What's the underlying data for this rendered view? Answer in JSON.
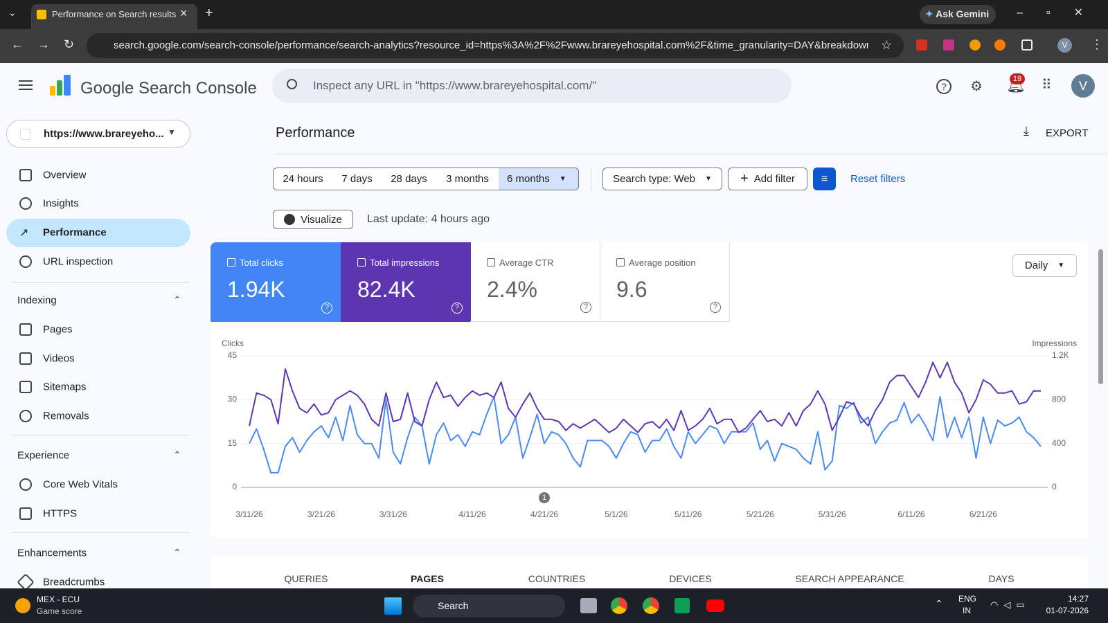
{
  "browser": {
    "tab_title": "Performance on Search results",
    "url": "search.google.com/search-console/performance/search-analytics?resource_id=https%3A%2F%2Fwww.brareyehospital.com%2F&time_granularity=DAY&breakdown=pa...",
    "gemini": "Ask Gemini",
    "profile": "V"
  },
  "header": {
    "product": "Google Search Console",
    "search_placeholder": "Inspect any URL in \"https://www.brareyehospital.com/\"",
    "notifications": "19",
    "avatar": "V"
  },
  "sidebar": {
    "property": "https://www.brareyeho...",
    "nav": [
      "Overview",
      "Insights",
      "Performance",
      "URL inspection"
    ],
    "sections": [
      {
        "title": "Indexing",
        "items": [
          "Pages",
          "Videos",
          "Sitemaps",
          "Removals"
        ]
      },
      {
        "title": "Experience",
        "items": [
          "Core Web Vitals",
          "HTTPS"
        ]
      },
      {
        "title": "Enhancements",
        "items": [
          "Breadcrumbs"
        ]
      }
    ]
  },
  "page": {
    "title": "Performance",
    "export": "EXPORT",
    "date_ranges": [
      "24 hours",
      "7 days",
      "28 days",
      "3 months",
      "6 months"
    ],
    "search_type": "Search type: Web",
    "add_filter": "Add filter",
    "reset": "Reset filters",
    "visualize": "Visualize",
    "last_update": "Last update: 4 hours ago",
    "granularity": "Daily"
  },
  "metrics": [
    {
      "label": "Total clicks",
      "value": "1.94K"
    },
    {
      "label": "Total impressions",
      "value": "82.4K"
    },
    {
      "label": "Average CTR",
      "value": "2.4%"
    },
    {
      "label": "Average position",
      "value": "9.6"
    }
  ],
  "chart_data": {
    "type": "line",
    "y_label": "Clicks",
    "y2_label": "Impressions",
    "categories": [
      "3/11/26",
      null,
      null,
      null,
      null,
      null,
      null,
      null,
      null,
      null,
      "3/21/26",
      null,
      null,
      null,
      null,
      null,
      null,
      null,
      null,
      null,
      "3/31/26",
      null,
      null,
      null,
      null,
      null,
      null,
      null,
      null,
      null,
      null,
      "4/11/26",
      null,
      null,
      null,
      null,
      null,
      null,
      null,
      null,
      null,
      "4/21/26",
      null,
      null,
      null,
      null,
      null,
      null,
      null,
      null,
      null,
      "5/1/26",
      null,
      null,
      null,
      null,
      null,
      null,
      null,
      null,
      null,
      "5/11/26",
      null,
      null,
      null,
      null,
      null,
      null,
      null,
      null,
      null,
      "5/21/26",
      null,
      null,
      null,
      null,
      null,
      null,
      null,
      null,
      null,
      "5/31/26",
      null,
      null,
      null,
      null,
      null,
      null,
      null,
      null,
      null,
      null,
      "6/11/26",
      null,
      null,
      null,
      null,
      null,
      null,
      null,
      null,
      null,
      "6/21/26",
      null,
      null,
      null,
      null,
      null,
      null,
      null,
      null
    ],
    "series": [
      {
        "color": "#4a8af4",
        "values": [
          15,
          20,
          13,
          5,
          5,
          14,
          17,
          12,
          16,
          19,
          21,
          17,
          24,
          16,
          28,
          18,
          15,
          15,
          10,
          30,
          12,
          8,
          17,
          24,
          21,
          8,
          18,
          22,
          16,
          18,
          14,
          19,
          18,
          25,
          31,
          15,
          18,
          24,
          10,
          17,
          25,
          15,
          19,
          18,
          15,
          10,
          7,
          16,
          16,
          16,
          14,
          10,
          15,
          19,
          18,
          12,
          16,
          16,
          20,
          14,
          10,
          19,
          15,
          18,
          21,
          20,
          15,
          19,
          19,
          19,
          22,
          13,
          16,
          9,
          15,
          14,
          13,
          10,
          8,
          19,
          6,
          9,
          28,
          27,
          29,
          22,
          24,
          15,
          19,
          22,
          23,
          29,
          22,
          25,
          21,
          16,
          31,
          17,
          24,
          17,
          24,
          10,
          24,
          15,
          23,
          21,
          22,
          24,
          19,
          17,
          14
        ]
      },
      {
        "color": "#5e35b1",
        "axis": "y2",
        "values": [
          560,
          860,
          840,
          800,
          580,
          1080,
          880,
          720,
          680,
          760,
          660,
          680,
          800,
          840,
          880,
          840,
          760,
          620,
          560,
          860,
          600,
          620,
          860,
          600,
          560,
          800,
          960,
          820,
          840,
          740,
          820,
          880,
          840,
          860,
          820,
          960,
          720,
          640,
          760,
          860,
          720,
          620,
          620,
          600,
          520,
          580,
          540,
          580,
          620,
          560,
          500,
          540,
          620,
          560,
          500,
          580,
          600,
          540,
          620,
          520,
          700,
          520,
          560,
          620,
          720,
          580,
          620,
          620,
          500,
          540,
          620,
          700,
          600,
          620,
          560,
          680,
          560,
          700,
          760,
          880,
          760,
          520,
          640,
          780,
          760,
          640,
          560,
          700,
          800,
          960,
          1020,
          1020,
          920,
          820,
          960,
          1140,
          1000,
          1140,
          960,
          860,
          680,
          800,
          980,
          940,
          860,
          860,
          880,
          760,
          780,
          880,
          880
        ]
      }
    ],
    "ylim": [
      0,
      45
    ],
    "yticks": [
      0,
      15,
      30,
      45
    ],
    "y2lim": [
      0,
      1200
    ],
    "y2ticks": [
      0,
      400,
      800,
      {
        "value": 1200,
        "label": "1.2K"
      }
    ],
    "grid": true,
    "annotations": [
      {
        "text": "1",
        "x": "4/21/26"
      }
    ]
  },
  "tabs": [
    "QUERIES",
    "PAGES",
    "COUNTRIES",
    "DEVICES",
    "SEARCH APPEARANCE",
    "DAYS"
  ],
  "taskbar": {
    "weather_title": "MEX - ECU",
    "weather_sub": "Game score",
    "search": "Search",
    "lang1": "ENG",
    "lang2": "IN",
    "time": "14:27",
    "date": "01-07-2026"
  }
}
